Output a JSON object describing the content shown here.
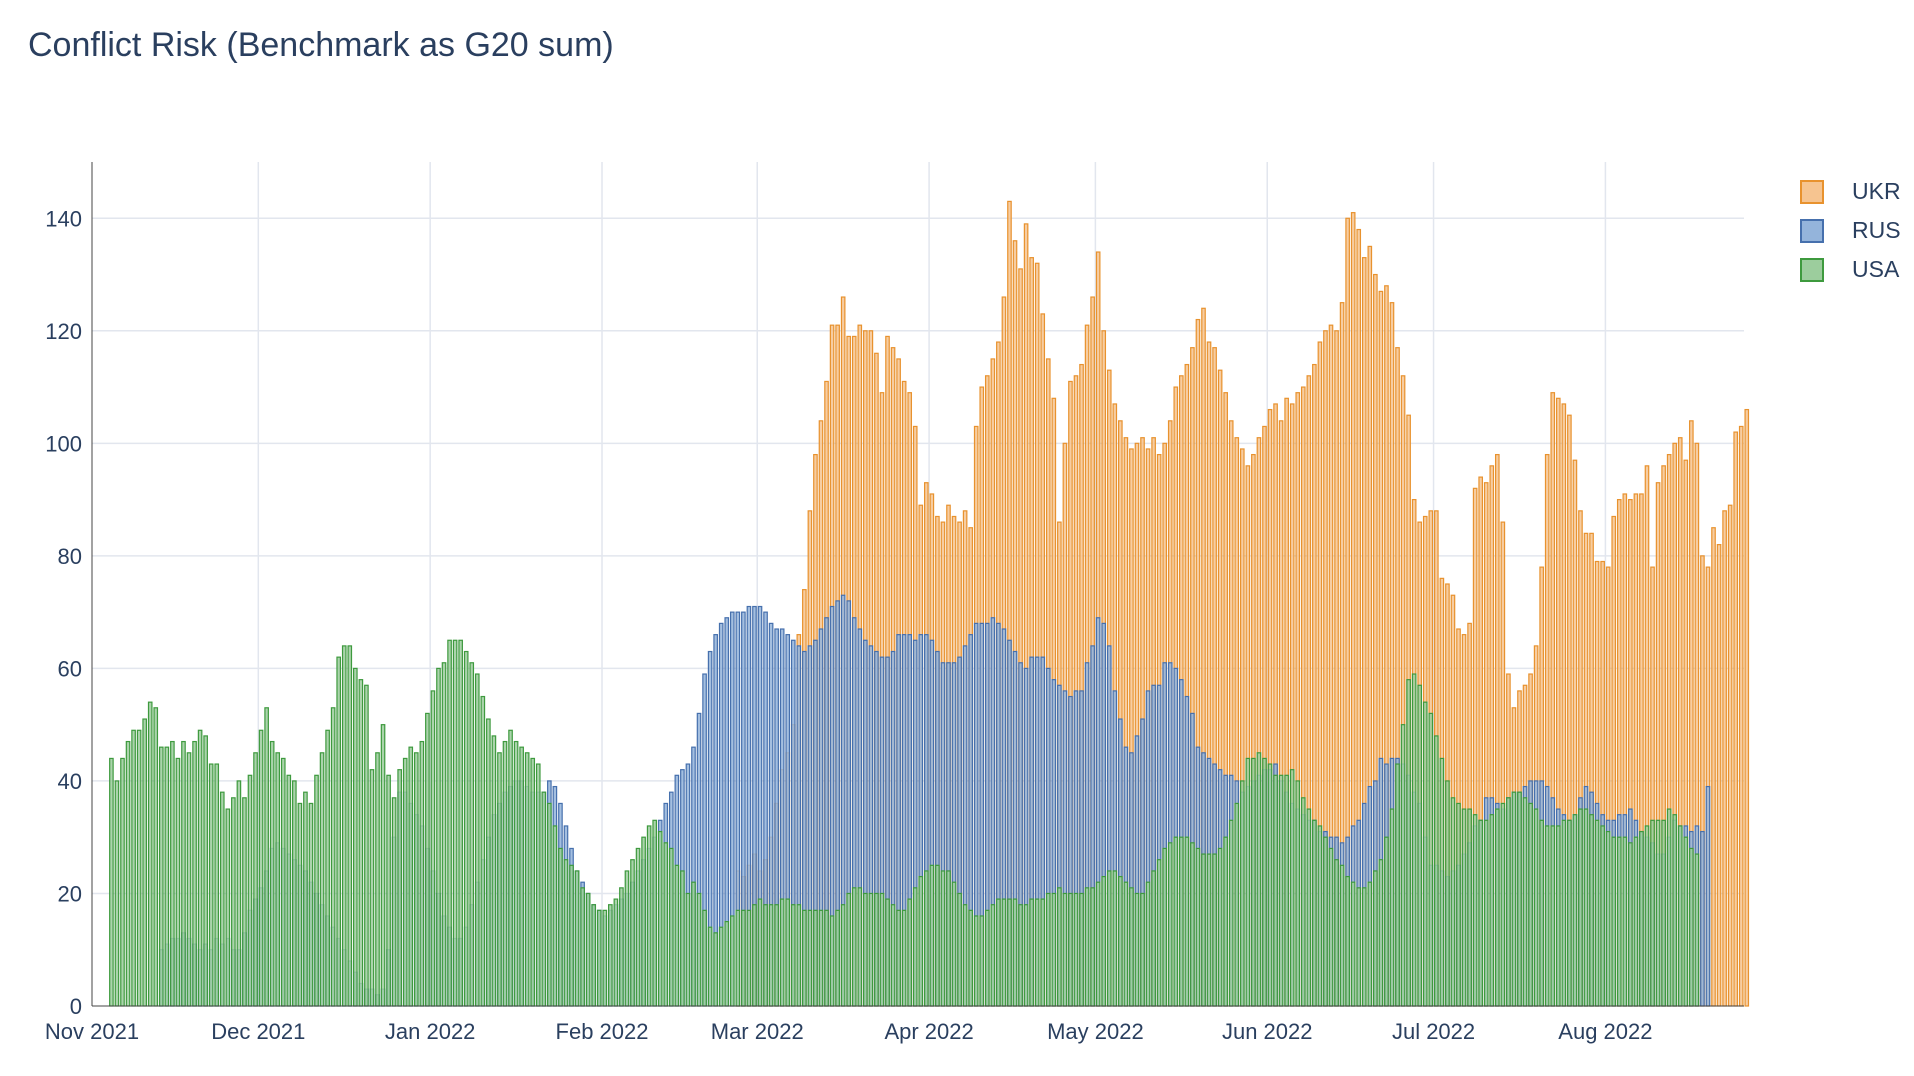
{
  "chart_data": {
    "type": "bar",
    "barmode": "overlay",
    "title": "Conflict Risk (Benchmark as G20 sum)",
    "xlabel": "",
    "ylabel": "",
    "x_start": "2021-11-01",
    "x_end": "2022-08-26",
    "x_tick_labels": [
      "Nov 2021",
      "Dec 2021",
      "Jan 2022",
      "Feb 2022",
      "Mar 2022",
      "Apr 2022",
      "May 2022",
      "Jun 2022",
      "Jul 2022",
      "Aug 2022"
    ],
    "ylim": [
      0,
      150
    ],
    "y_ticks": [
      0,
      20,
      40,
      60,
      80,
      100,
      120,
      140
    ],
    "grid": true,
    "legend_position": "top-right",
    "series": [
      {
        "name": "UKR",
        "fill_color": "#f6c490",
        "line_color": "#e8922e",
        "start": "2021-11-04",
        "values": [
          0,
          0,
          0,
          0,
          0,
          0,
          0,
          0,
          0,
          0,
          0,
          0,
          0,
          0,
          0,
          0,
          0,
          0,
          0,
          0,
          0,
          0,
          0,
          0,
          0,
          0,
          0,
          0,
          0,
          0,
          0,
          0,
          0,
          0,
          0,
          0,
          0,
          0,
          0,
          0,
          0,
          0,
          0,
          0,
          0,
          0,
          0,
          0,
          0,
          0,
          0,
          0,
          0,
          0,
          0,
          0,
          0,
          0,
          0,
          0,
          0,
          0,
          0,
          0,
          0,
          0,
          0,
          0,
          0,
          0,
          0,
          0,
          0,
          0,
          0,
          0,
          0,
          0,
          0,
          0,
          0,
          0,
          0,
          0,
          0,
          0,
          0,
          0,
          0,
          0,
          0,
          0,
          0,
          0,
          0,
          0,
          0,
          0,
          0,
          0,
          0,
          0,
          0,
          0,
          0,
          0,
          0,
          0,
          0,
          0,
          0,
          0,
          0,
          24,
          23,
          25,
          27,
          24,
          26,
          30,
          36,
          42,
          45,
          50,
          66,
          74,
          88,
          98,
          104,
          111,
          121,
          121,
          126,
          119,
          119,
          121,
          120,
          120,
          116,
          109,
          119,
          117,
          115,
          111,
          109,
          103,
          89,
          93,
          91,
          87,
          86,
          89,
          87,
          86,
          88,
          85,
          103,
          110,
          112,
          115,
          118,
          126,
          143,
          136,
          131,
          139,
          133,
          132,
          123,
          115,
          108,
          86,
          100,
          111,
          112,
          114,
          121,
          126,
          134,
          120,
          113,
          107,
          104,
          101,
          99,
          100,
          101,
          99,
          101,
          98,
          100,
          104,
          110,
          112,
          114,
          117,
          122,
          124,
          118,
          117,
          113,
          109,
          104,
          101,
          99,
          96,
          98,
          101,
          103,
          106,
          107,
          104,
          108,
          107,
          109,
          110,
          112,
          114,
          118,
          120,
          121,
          120,
          125,
          140,
          141,
          138,
          133,
          135,
          130,
          127,
          128,
          125,
          117,
          112,
          105,
          90,
          86,
          87,
          88,
          88,
          76,
          75,
          73,
          67,
          66,
          68,
          92,
          94,
          93,
          96,
          98,
          86,
          59,
          53,
          56,
          57,
          59,
          64,
          78,
          98,
          109,
          108,
          107,
          105,
          97,
          88,
          84,
          84,
          79,
          79,
          78,
          87,
          90,
          91,
          90,
          91,
          91,
          96,
          78,
          93,
          96,
          98,
          100,
          101,
          97,
          104,
          100,
          80,
          78,
          85,
          82,
          88,
          89,
          102,
          103,
          106
        ]
      },
      {
        "name": "RUS",
        "fill_color": "#94b4db",
        "line_color": "#4670ad",
        "start": "2021-11-08",
        "values": [
          0,
          0,
          0,
          0,
          0,
          10,
          11,
          12,
          12,
          13,
          12,
          11,
          10,
          11,
          10,
          12,
          11,
          12,
          10,
          10,
          13,
          17,
          19,
          21,
          24,
          28,
          29,
          28,
          27,
          26,
          25,
          24,
          22,
          20,
          18,
          16,
          14,
          12,
          10,
          8,
          6,
          4,
          3,
          3,
          2,
          3,
          10,
          30,
          38,
          38,
          36,
          34,
          32,
          28,
          24,
          20,
          16,
          14,
          12,
          12,
          14,
          18,
          22,
          26,
          30,
          34,
          36,
          38,
          39,
          40,
          40,
          39,
          38,
          38,
          38,
          40,
          39,
          36,
          32,
          28,
          24,
          22,
          20,
          18,
          17,
          16,
          17,
          18,
          19,
          20,
          22,
          24,
          26,
          28,
          30,
          33,
          36,
          38,
          41,
          42,
          43,
          46,
          52,
          59,
          63,
          66,
          68,
          69,
          70,
          70,
          70,
          71,
          71,
          71,
          70,
          68,
          67,
          67,
          66,
          65,
          64,
          63,
          64,
          65,
          67,
          69,
          71,
          72,
          73,
          72,
          69,
          67,
          65,
          64,
          63,
          62,
          62,
          63,
          66,
          66,
          66,
          65,
          66,
          66,
          65,
          63,
          61,
          61,
          61,
          62,
          64,
          66,
          68,
          68,
          68,
          69,
          68,
          67,
          65,
          63,
          61,
          60,
          62,
          62,
          62,
          60,
          58,
          57,
          56,
          55,
          56,
          56,
          61,
          64,
          69,
          68,
          64,
          56,
          51,
          46,
          45,
          48,
          51,
          56,
          57,
          57,
          61,
          61,
          60,
          58,
          55,
          52,
          46,
          45,
          44,
          43,
          42,
          41,
          41,
          40,
          38,
          39,
          40,
          41,
          42,
          42,
          43,
          40,
          38,
          36,
          35,
          34,
          33,
          33,
          31,
          31,
          30,
          30,
          29,
          30,
          32,
          33,
          36,
          39,
          40,
          44,
          43,
          44,
          44,
          43,
          41,
          38,
          36,
          30,
          25,
          25,
          24,
          23,
          24,
          25,
          27,
          29,
          32,
          33,
          37,
          37,
          36,
          35,
          37,
          38,
          38,
          39,
          40,
          40,
          40,
          39,
          37,
          35,
          34,
          33,
          34,
          37,
          39,
          38,
          36,
          34,
          33,
          33,
          34,
          34,
          35,
          33,
          31,
          30,
          29,
          27,
          27,
          30,
          33,
          32,
          32,
          31,
          32,
          31,
          39
        ]
      },
      {
        "name": "USA",
        "fill_color": "#9ccd9d",
        "line_color": "#3e9a3e",
        "start": "2021-11-04",
        "values": [
          44,
          40,
          44,
          47,
          49,
          49,
          51,
          54,
          53,
          46,
          46,
          47,
          44,
          47,
          45,
          47,
          49,
          48,
          43,
          43,
          38,
          35,
          37,
          40,
          37,
          41,
          45,
          49,
          53,
          47,
          45,
          44,
          41,
          40,
          36,
          38,
          36,
          41,
          45,
          49,
          53,
          62,
          64,
          64,
          60,
          58,
          57,
          42,
          45,
          50,
          41,
          37,
          42,
          44,
          46,
          45,
          47,
          52,
          56,
          60,
          61,
          65,
          65,
          65,
          63,
          61,
          59,
          55,
          51,
          48,
          45,
          47,
          49,
          47,
          46,
          45,
          44,
          43,
          38,
          36,
          32,
          28,
          26,
          25,
          24,
          21,
          20,
          18,
          17,
          17,
          18,
          19,
          21,
          24,
          26,
          28,
          30,
          32,
          33,
          31,
          29,
          28,
          25,
          24,
          20,
          22,
          20,
          17,
          14,
          13,
          14,
          15,
          16,
          17,
          17,
          17,
          18,
          19,
          18,
          18,
          18,
          19,
          19,
          18,
          18,
          17,
          17,
          17,
          17,
          17,
          16,
          17,
          18,
          20,
          21,
          21,
          20,
          20,
          20,
          20,
          19,
          18,
          17,
          17,
          19,
          21,
          23,
          24,
          25,
          25,
          24,
          24,
          22,
          20,
          18,
          17,
          16,
          16,
          17,
          18,
          19,
          19,
          19,
          19,
          18,
          18,
          19,
          19,
          19,
          20,
          20,
          21,
          20,
          20,
          20,
          20,
          21,
          21,
          22,
          23,
          24,
          24,
          23,
          22,
          21,
          20,
          20,
          22,
          24,
          26,
          28,
          29,
          30,
          30,
          30,
          29,
          28,
          27,
          27,
          27,
          28,
          30,
          33,
          36,
          40,
          44,
          44,
          45,
          44,
          43,
          41,
          41,
          41,
          42,
          40,
          37,
          35,
          33,
          32,
          30,
          28,
          26,
          25,
          23,
          22,
          21,
          21,
          22,
          24,
          26,
          30,
          35,
          43,
          50,
          58,
          59,
          57,
          54,
          52,
          48,
          44,
          40,
          37,
          36,
          35,
          35,
          34,
          33,
          33,
          34,
          35,
          36,
          37,
          38,
          38,
          37,
          36,
          35,
          33,
          32,
          32,
          32,
          33,
          33,
          34,
          35,
          35,
          34,
          33,
          32,
          31,
          30,
          30,
          30,
          29,
          30,
          31,
          32,
          33,
          33,
          33,
          35,
          34,
          32,
          30,
          28,
          27
        ]
      }
    ]
  }
}
